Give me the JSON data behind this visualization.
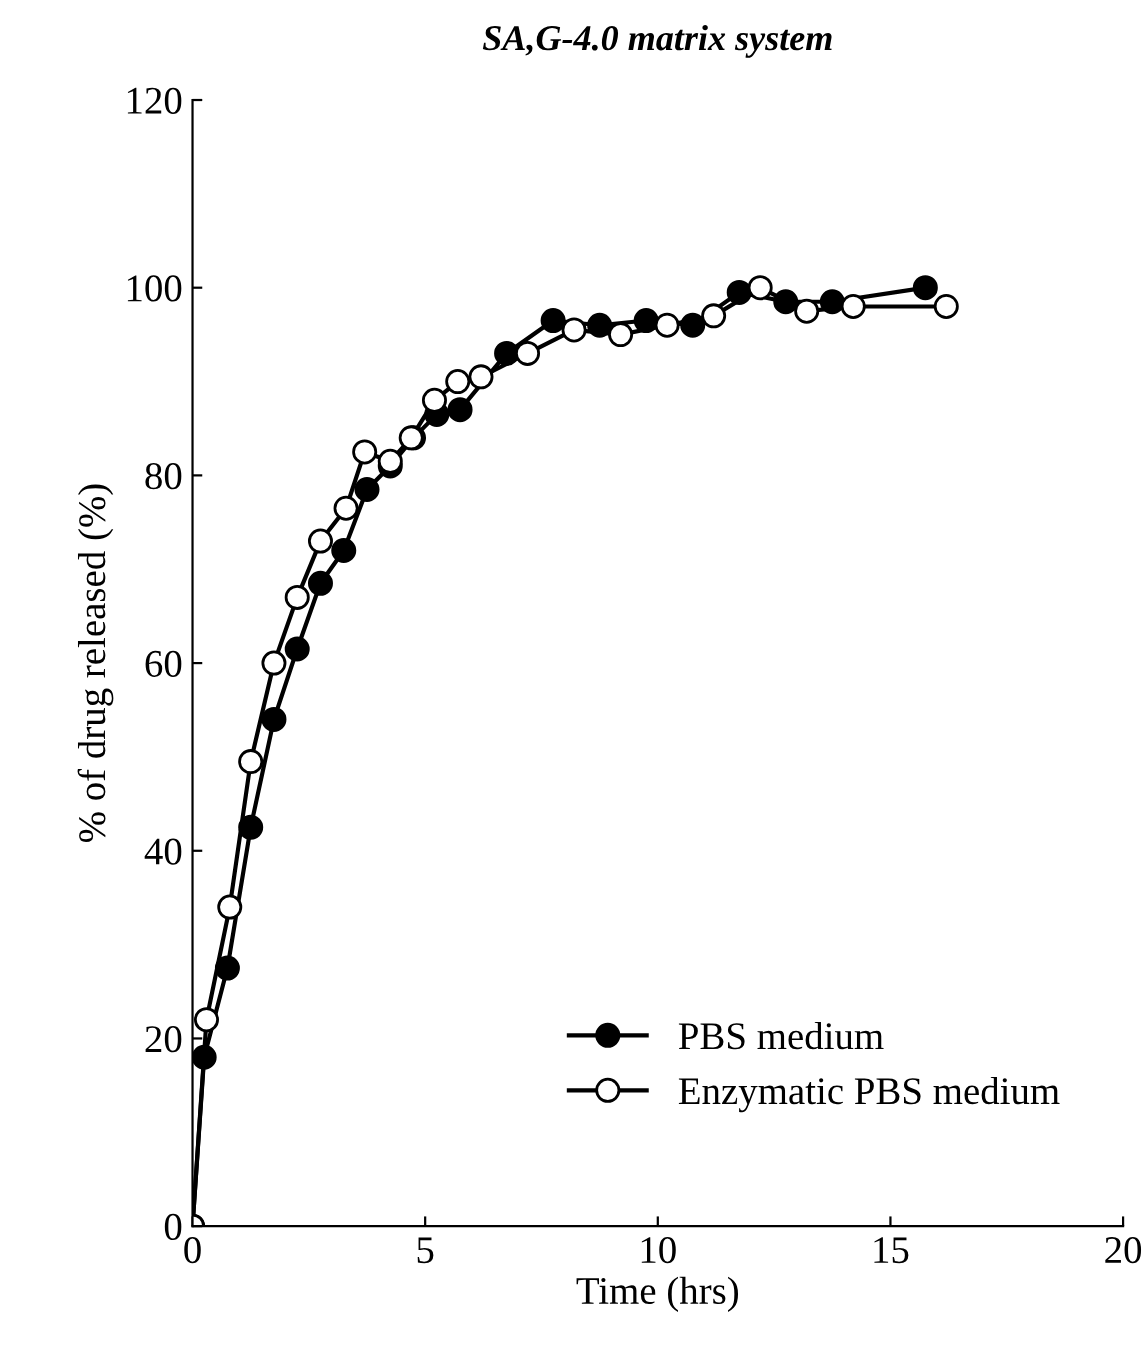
{
  "chart_data": {
    "type": "line",
    "title": "SA,G-4.0 matrix system",
    "xlabel": "Time (hrs)",
    "ylabel": "% of drug released (%)",
    "xlim": [
      0,
      20
    ],
    "xticks": [
      0,
      5,
      10,
      15,
      20
    ],
    "ylim": [
      0,
      120
    ],
    "yticks": [
      0,
      20,
      40,
      60,
      80,
      100,
      120
    ],
    "grid": false,
    "legend": "bottom right",
    "series": [
      {
        "name": "PBS medium",
        "color": "#000000",
        "marker": "circle",
        "x": [
          0,
          0.25,
          0.75,
          1.25,
          1.75,
          2.25,
          2.75,
          3.25,
          3.75,
          4.25,
          4.75,
          5.25,
          5.75,
          6.75,
          7.75,
          8.75,
          9.75,
          10.75,
          11.75,
          12.75,
          13.75,
          15.75
        ],
        "values": [
          0,
          18,
          27.5,
          42.5,
          54,
          61.5,
          68.5,
          72,
          78.5,
          81,
          84,
          86.5,
          87,
          93,
          96.5,
          96,
          96.5,
          96,
          99.5,
          98.5,
          98.5,
          100
        ]
      },
      {
        "name": "Enzymatic PBS medium",
        "color": "#000000",
        "marker": "circle",
        "x": [
          0,
          0.3,
          0.8,
          1.25,
          1.75,
          2.25,
          2.75,
          3.3,
          3.7,
          4.25,
          4.7,
          5.2,
          5.7,
          6.2,
          7.2,
          8.2,
          9.2,
          10.2,
          11.2,
          12.2,
          13.2,
          14.2,
          16.2
        ],
        "values": [
          0,
          22,
          34,
          49.5,
          60,
          67,
          73,
          76.5,
          82.5,
          81.5,
          84,
          88,
          90,
          90.5,
          93,
          95.5,
          95,
          96,
          97,
          100,
          97.5,
          98,
          98
        ]
      }
    ]
  }
}
